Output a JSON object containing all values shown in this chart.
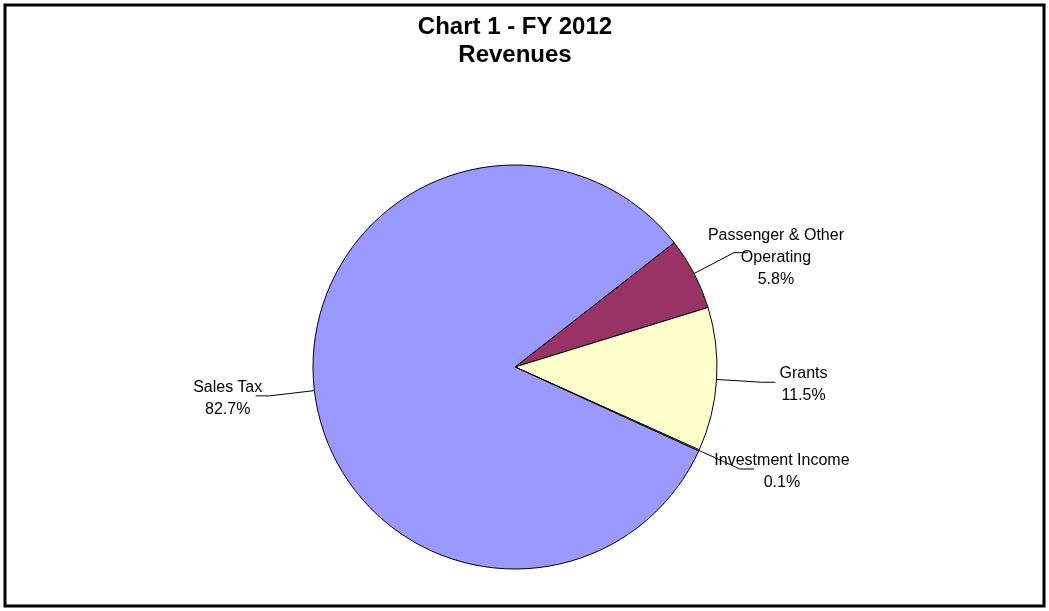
{
  "chart_data": {
    "type": "pie",
    "title": "Chart 1 - FY 2012 Revenues",
    "categories": [
      "Passenger & Other Operating",
      "Grants",
      "Investment Income",
      "Sales Tax"
    ],
    "values": [
      5.8,
      11.5,
      0.1,
      82.7
    ],
    "colors": [
      "#993366",
      "#ffffcc",
      "#ccffff",
      "#9999ff"
    ],
    "value_labels": [
      "5.8%",
      "11.5%",
      "0.1%",
      "82.7%"
    ]
  }
}
